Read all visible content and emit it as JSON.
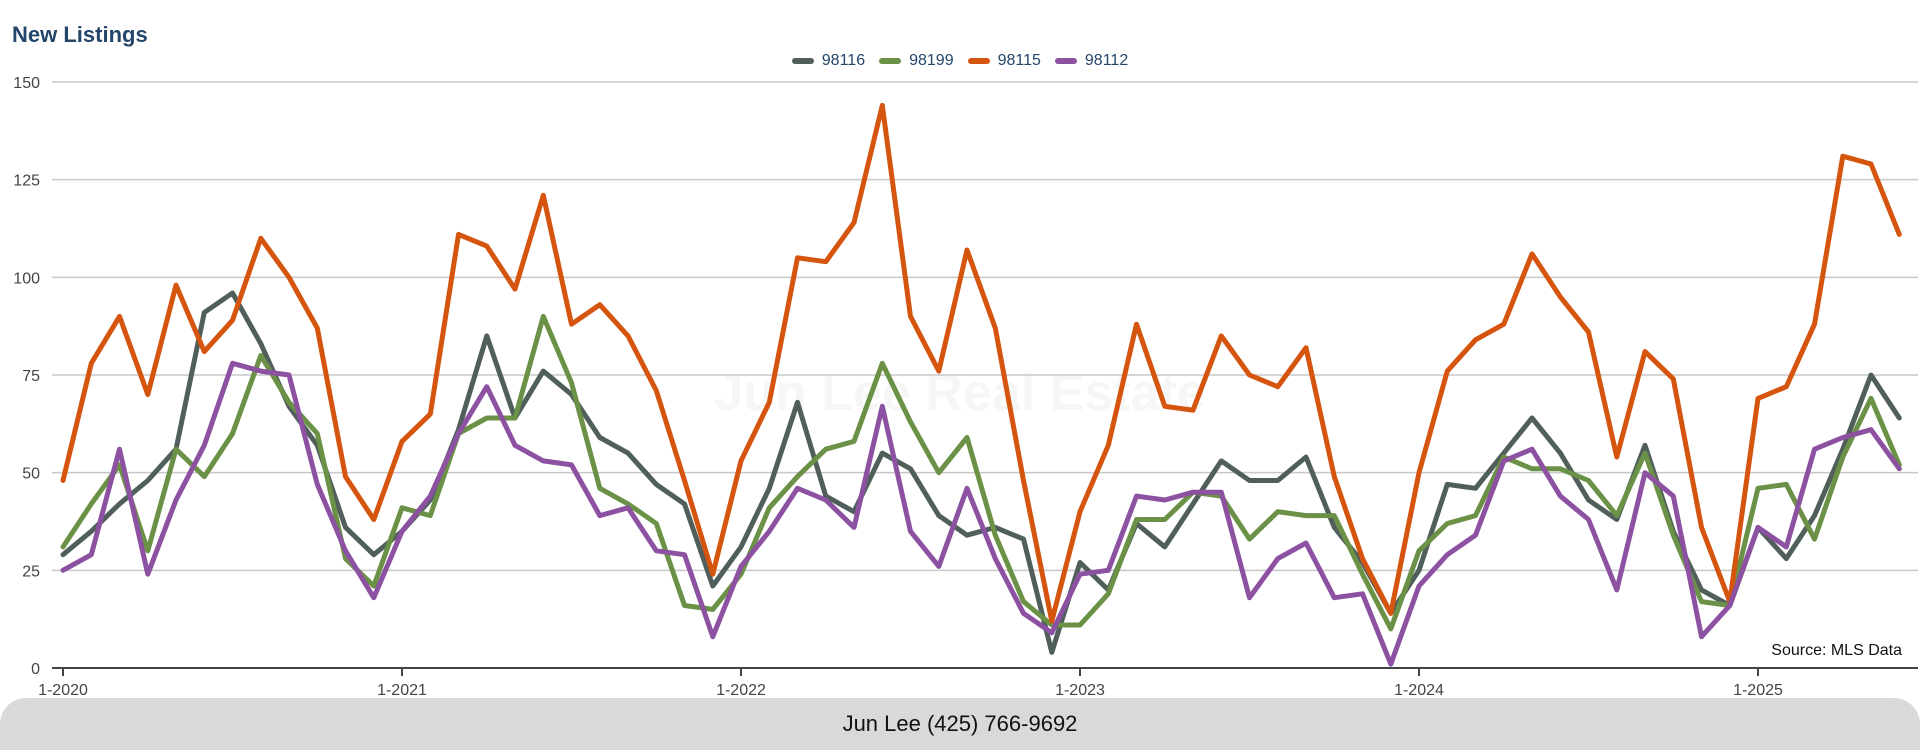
{
  "chart_data": {
    "type": "line",
    "title": "New Listings",
    "xlabel": "",
    "ylabel": "",
    "ylim": [
      0,
      150
    ],
    "yticks": [
      0,
      25,
      50,
      75,
      100,
      125,
      150
    ],
    "x_tick_labels": [
      "1-2020",
      "1-2021",
      "1-2022",
      "1-2023",
      "1-2024",
      "1-2025"
    ],
    "x_start": "2020-01",
    "x_end": "2025-06",
    "grid": true,
    "legend_placement": "top-center",
    "series": [
      {
        "name": "98116",
        "color": "#515f5c",
        "values": [
          29,
          35,
          42,
          48,
          56,
          91,
          96,
          83,
          67,
          57,
          36,
          29,
          35,
          43,
          61,
          85,
          64,
          76,
          70,
          59,
          55,
          47,
          42,
          21,
          31,
          46,
          68,
          44,
          40,
          55,
          51,
          39,
          34,
          36,
          33,
          4,
          27,
          20,
          37,
          31,
          42,
          53,
          48,
          48,
          54,
          36,
          27,
          14,
          25,
          47,
          46,
          55,
          64,
          55,
          43,
          38,
          57,
          35,
          20,
          16,
          36,
          28,
          39,
          56,
          75,
          64
        ]
      },
      {
        "name": "98199",
        "color": "#6a9146",
        "values": [
          31,
          42,
          52,
          30,
          56,
          49,
          60,
          80,
          68,
          60,
          28,
          21,
          41,
          39,
          60,
          64,
          64,
          90,
          73,
          46,
          42,
          37,
          16,
          15,
          24,
          41,
          49,
          56,
          58,
          78,
          63,
          50,
          59,
          34,
          17,
          11,
          11,
          19,
          38,
          38,
          45,
          44,
          33,
          40,
          39,
          39,
          24,
          10,
          30,
          37,
          39,
          54,
          51,
          51,
          48,
          39,
          55,
          34,
          17,
          16,
          46,
          47,
          33,
          54,
          69,
          52
        ]
      },
      {
        "name": "98115",
        "color": "#d5550f",
        "values": [
          48,
          78,
          90,
          70,
          98,
          81,
          89,
          110,
          100,
          87,
          49,
          38,
          58,
          65,
          111,
          108,
          97,
          121,
          88,
          93,
          85,
          71,
          48,
          24,
          53,
          68,
          105,
          104,
          114,
          144,
          90,
          76,
          107,
          87,
          48,
          12,
          40,
          57,
          88,
          67,
          66,
          85,
          75,
          72,
          82,
          49,
          28,
          14,
          50,
          76,
          84,
          88,
          106,
          95,
          86,
          54,
          81,
          74,
          36,
          17,
          69,
          72,
          88,
          131,
          129,
          111
        ]
      },
      {
        "name": "98112",
        "color": "#8c51a1",
        "values": [
          25,
          29,
          56,
          24,
          43,
          57,
          78,
          76,
          75,
          47,
          30,
          18,
          35,
          44,
          60,
          72,
          57,
          53,
          52,
          39,
          41,
          30,
          29,
          8,
          26,
          35,
          46,
          43,
          36,
          67,
          35,
          26,
          46,
          28,
          14,
          9,
          24,
          25,
          44,
          43,
          45,
          45,
          18,
          28,
          32,
          18,
          19,
          1,
          21,
          29,
          34,
          53,
          56,
          44,
          38,
          20,
          50,
          44,
          8,
          16,
          36,
          31,
          56,
          59,
          61,
          51
        ]
      }
    ]
  },
  "source_note": "Source: MLS Data",
  "footer_text": "Jun Lee (425) 766-9692",
  "watermark": "Jun Lee Real Estate"
}
